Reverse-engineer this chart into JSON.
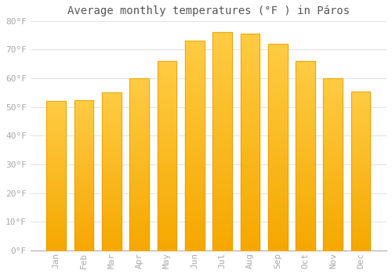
{
  "title": "Average monthly temperatures (°F ) in Páros",
  "months": [
    "Jan",
    "Feb",
    "Mar",
    "Apr",
    "May",
    "Jun",
    "Jul",
    "Aug",
    "Sep",
    "Oct",
    "Nov",
    "Dec"
  ],
  "values": [
    52,
    52.5,
    55,
    60,
    66,
    73,
    76,
    75.5,
    72,
    66,
    60,
    55.5
  ],
  "bar_color_top": "#FFCC44",
  "bar_color_bottom": "#F5A800",
  "bar_edge_color": "#E89800",
  "background_color": "#FFFFFF",
  "grid_color": "#DDDDDD",
  "ylim": [
    0,
    80
  ],
  "yticks": [
    0,
    10,
    20,
    30,
    40,
    50,
    60,
    70,
    80
  ],
  "ytick_labels": [
    "0°F",
    "10°F",
    "20°F",
    "30°F",
    "40°F",
    "50°F",
    "60°F",
    "70°F",
    "80°F"
  ],
  "tick_color": "#AAAAAA",
  "title_color": "#555555",
  "title_fontsize": 10,
  "tick_fontsize": 8,
  "label_fontsize": 8
}
